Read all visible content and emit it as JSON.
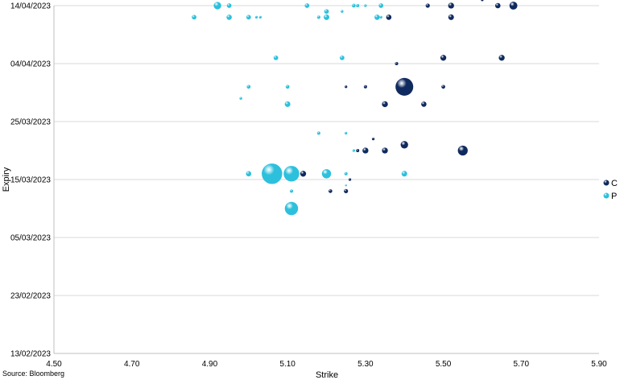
{
  "chart_data": {
    "type": "scatter",
    "bubble": true,
    "title": "",
    "xlabel": "Strike",
    "ylabel": "Expiry",
    "xlim": [
      4.5,
      5.9
    ],
    "x_ticks": [
      "4.50",
      "4.70",
      "4.90",
      "5.10",
      "5.30",
      "5.50",
      "5.70",
      "5.90"
    ],
    "ylim": [
      "2023-02-13",
      "2023-04-14"
    ],
    "y_ticks": [
      "13/02/2023",
      "23/02/2023",
      "05/03/2023",
      "15/03/2023",
      "25/03/2023",
      "04/04/2023",
      "14/04/2023"
    ],
    "grid": "horizontal",
    "legend_position": "right",
    "series": [
      {
        "name": "C",
        "color": "#0f2a5e",
        "points": [
          {
            "x": 5.14,
            "y": "2023-03-16",
            "size": 0.5
          },
          {
            "x": 5.21,
            "y": "2023-03-13",
            "size": 0.2
          },
          {
            "x": 5.25,
            "y": "2023-03-13",
            "size": 0.25
          },
          {
            "x": 5.26,
            "y": "2023-03-15",
            "size": 0.1
          },
          {
            "x": 5.28,
            "y": "2023-03-20",
            "size": 0.15
          },
          {
            "x": 5.3,
            "y": "2023-03-20",
            "size": 0.5
          },
          {
            "x": 5.32,
            "y": "2023-03-22",
            "size": 0.1
          },
          {
            "x": 5.35,
            "y": "2023-03-20",
            "size": 0.5
          },
          {
            "x": 5.4,
            "y": "2023-03-21",
            "size": 0.8
          },
          {
            "x": 5.55,
            "y": "2023-03-20",
            "size": 1.4
          },
          {
            "x": 5.35,
            "y": "2023-03-28",
            "size": 0.5
          },
          {
            "x": 5.45,
            "y": "2023-03-28",
            "size": 0.4
          },
          {
            "x": 5.25,
            "y": "2023-03-31",
            "size": 0.1
          },
          {
            "x": 5.3,
            "y": "2023-03-31",
            "size": 0.15
          },
          {
            "x": 5.4,
            "y": "2023-03-31",
            "size": 4.5
          },
          {
            "x": 5.5,
            "y": "2023-03-31",
            "size": 0.2
          },
          {
            "x": 5.38,
            "y": "2023-04-04",
            "size": 0.15
          },
          {
            "x": 5.5,
            "y": "2023-04-05",
            "size": 0.5
          },
          {
            "x": 5.65,
            "y": "2023-04-05",
            "size": 0.5
          },
          {
            "x": 5.36,
            "y": "2023-04-12",
            "size": 0.4
          },
          {
            "x": 5.52,
            "y": "2023-04-12",
            "size": 0.45
          },
          {
            "x": 5.46,
            "y": "2023-04-14",
            "size": 0.25
          },
          {
            "x": 5.52,
            "y": "2023-04-14",
            "size": 0.5
          },
          {
            "x": 5.6,
            "y": "2023-04-15",
            "size": 0.1
          },
          {
            "x": 5.64,
            "y": "2023-04-14",
            "size": 0.4
          },
          {
            "x": 5.68,
            "y": "2023-04-14",
            "size": 0.9
          }
        ]
      },
      {
        "name": "P",
        "color": "#2cc0dc",
        "points": [
          {
            "x": 5.11,
            "y": "2023-03-10",
            "size": 2.5
          },
          {
            "x": 5.11,
            "y": "2023-03-13",
            "size": 0.15
          },
          {
            "x": 5.25,
            "y": "2023-03-14",
            "size": 0.05
          },
          {
            "x": 5.0,
            "y": "2023-03-16",
            "size": 0.4
          },
          {
            "x": 5.06,
            "y": "2023-03-16",
            "size": 6.0
          },
          {
            "x": 5.11,
            "y": "2023-03-16",
            "size": 3.5
          },
          {
            "x": 5.2,
            "y": "2023-03-16",
            "size": 1.2
          },
          {
            "x": 5.25,
            "y": "2023-03-16",
            "size": 0.15
          },
          {
            "x": 5.4,
            "y": "2023-03-16",
            "size": 0.45
          },
          {
            "x": 5.27,
            "y": "2023-03-20",
            "size": 0.1
          },
          {
            "x": 5.18,
            "y": "2023-03-23",
            "size": 0.15
          },
          {
            "x": 5.25,
            "y": "2023-03-23",
            "size": 0.1
          },
          {
            "x": 4.98,
            "y": "2023-03-29",
            "size": 0.1
          },
          {
            "x": 5.1,
            "y": "2023-03-28",
            "size": 0.45
          },
          {
            "x": 5.0,
            "y": "2023-03-31",
            "size": 0.2
          },
          {
            "x": 5.1,
            "y": "2023-03-31",
            "size": 0.2
          },
          {
            "x": 5.07,
            "y": "2023-04-05",
            "size": 0.3
          },
          {
            "x": 5.24,
            "y": "2023-04-05",
            "size": 0.3
          },
          {
            "x": 4.86,
            "y": "2023-04-12",
            "size": 0.3
          },
          {
            "x": 4.95,
            "y": "2023-04-12",
            "size": 0.4
          },
          {
            "x": 5.0,
            "y": "2023-04-12",
            "size": 0.3
          },
          {
            "x": 5.02,
            "y": "2023-04-12",
            "size": 0.1
          },
          {
            "x": 5.03,
            "y": "2023-04-12",
            "size": 0.1
          },
          {
            "x": 5.18,
            "y": "2023-04-12",
            "size": 0.15
          },
          {
            "x": 5.2,
            "y": "2023-04-12",
            "size": 0.45
          },
          {
            "x": 5.2,
            "y": "2023-04-13",
            "size": 0.3
          },
          {
            "x": 5.24,
            "y": "2023-04-13",
            "size": 0.1
          },
          {
            "x": 5.33,
            "y": "2023-04-12",
            "size": 0.4
          },
          {
            "x": 5.34,
            "y": "2023-04-12",
            "size": 0.1
          },
          {
            "x": 4.92,
            "y": "2023-04-14",
            "size": 0.8
          },
          {
            "x": 4.95,
            "y": "2023-04-14",
            "size": 0.3
          },
          {
            "x": 5.15,
            "y": "2023-04-14",
            "size": 0.3
          },
          {
            "x": 5.27,
            "y": "2023-04-14",
            "size": 0.2
          },
          {
            "x": 5.28,
            "y": "2023-04-14",
            "size": 0.15
          },
          {
            "x": 5.3,
            "y": "2023-04-14",
            "size": 0.1
          },
          {
            "x": 5.34,
            "y": "2023-04-14",
            "size": 0.3
          }
        ]
      }
    ]
  },
  "source": "Source: Bloomberg"
}
